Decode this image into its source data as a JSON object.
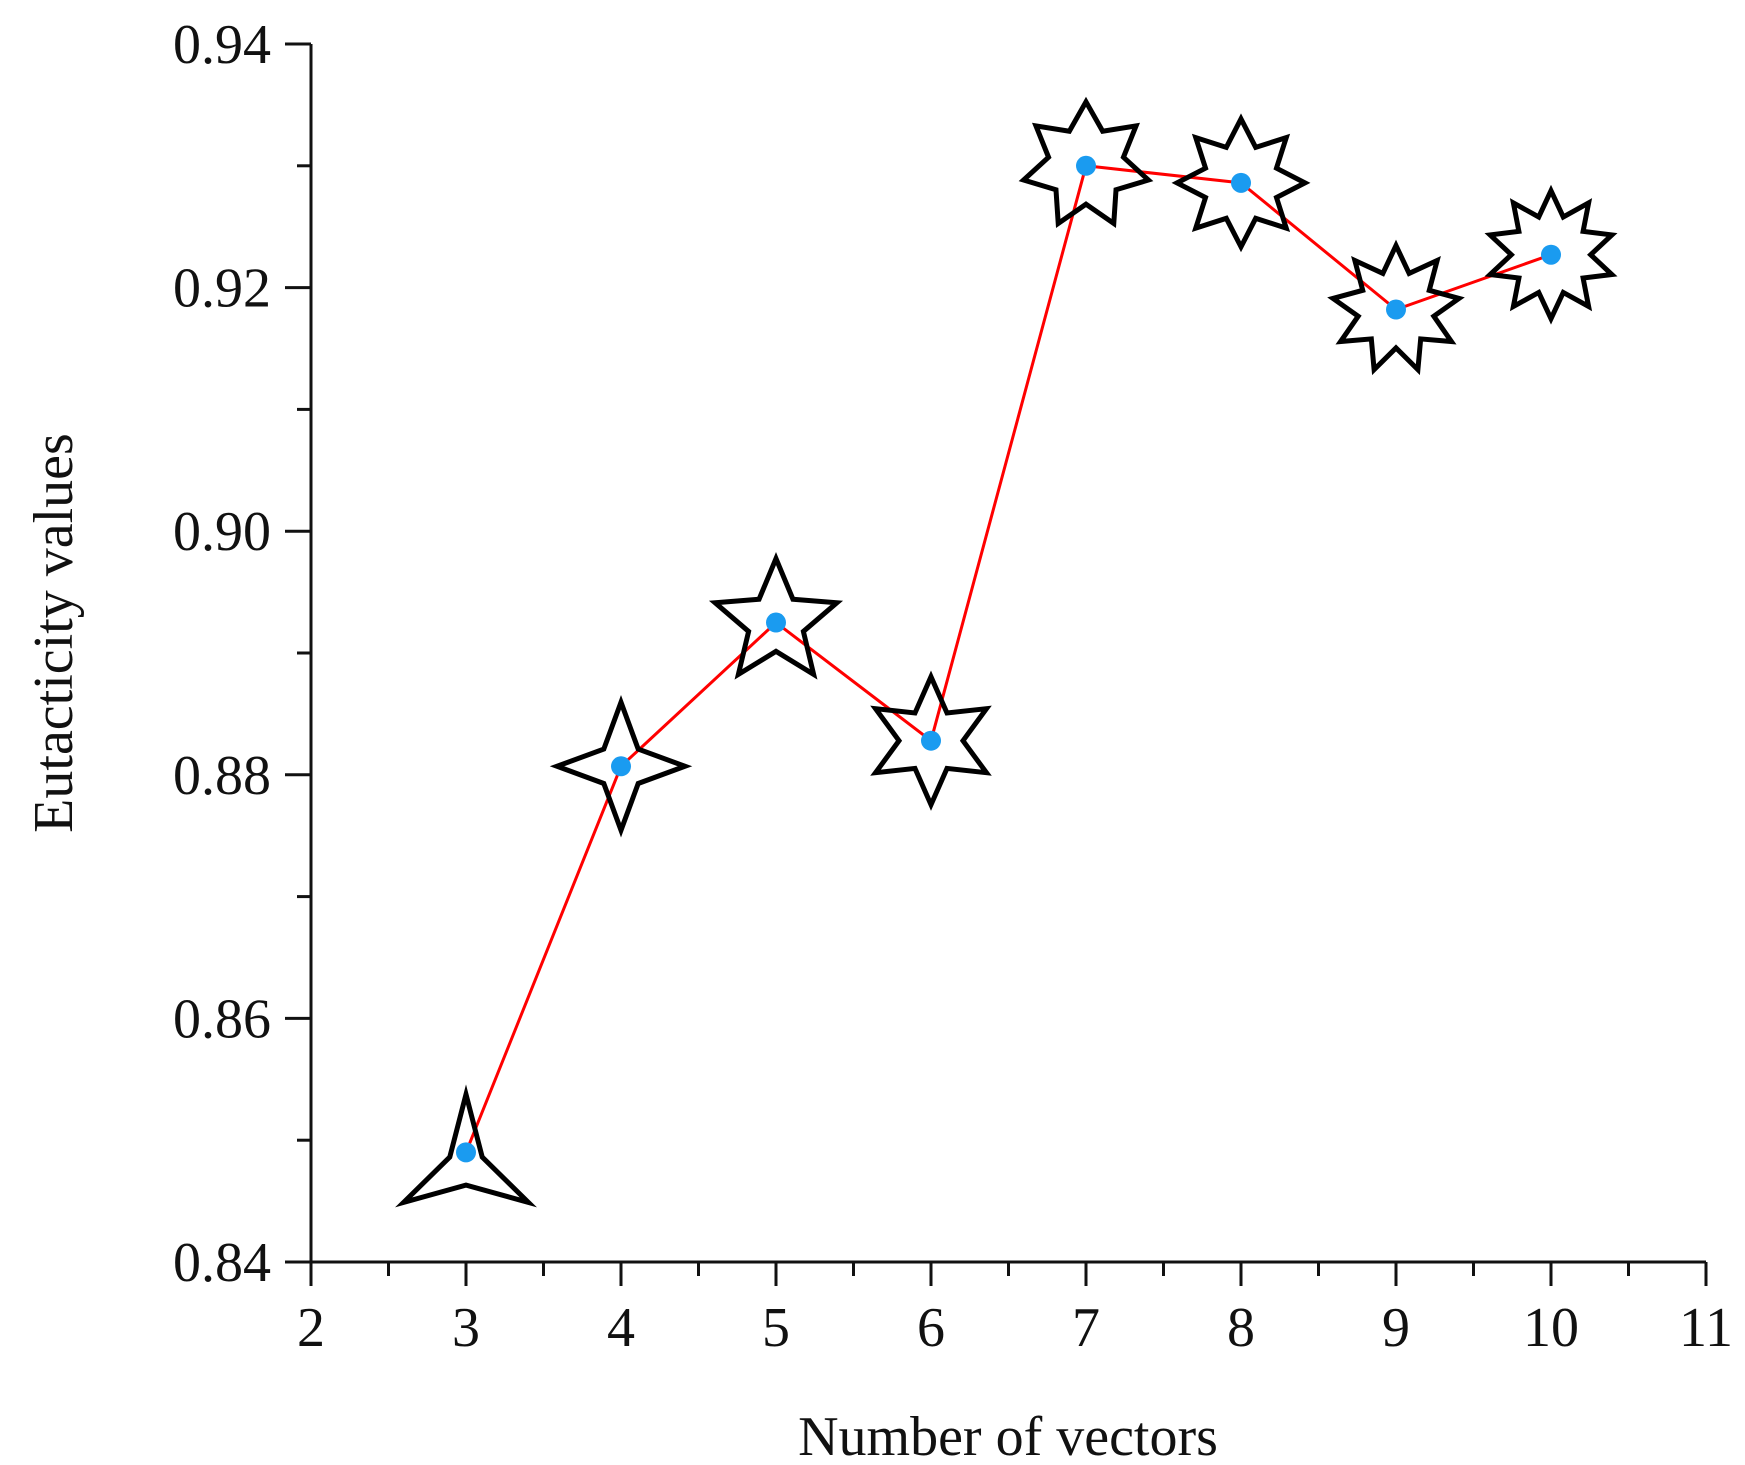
{
  "chart_data": {
    "type": "line",
    "title": "",
    "xlabel": "Number of vectors",
    "ylabel": "Eutacticity values",
    "xlim": [
      2,
      11
    ],
    "ylim": [
      0.84,
      0.94
    ],
    "xticks": [
      2,
      3,
      4,
      5,
      6,
      7,
      8,
      9,
      10,
      11
    ],
    "yticks": [
      0.84,
      0.86,
      0.88,
      0.9,
      0.92,
      0.94
    ],
    "xtick_labels": [
      "2",
      "3",
      "4",
      "5",
      "6",
      "7",
      "8",
      "9",
      "10",
      "11"
    ],
    "ytick_labels": [
      "0.84",
      "0.86",
      "0.88",
      "0.90",
      "0.92",
      "0.94"
    ],
    "grid": false,
    "series": [
      {
        "name": "Eutacticity",
        "x": [
          3,
          4,
          5,
          6,
          7,
          8,
          9,
          10
        ],
        "values": [
          0.849,
          0.8807,
          0.8925,
          0.8828,
          0.93,
          0.9286,
          0.9182,
          0.9227
        ],
        "line_color": "#ff0000",
        "point_color": "#1a9bf0",
        "marker_star_points": [
          3,
          4,
          5,
          6,
          7,
          8,
          9,
          10
        ]
      }
    ]
  }
}
